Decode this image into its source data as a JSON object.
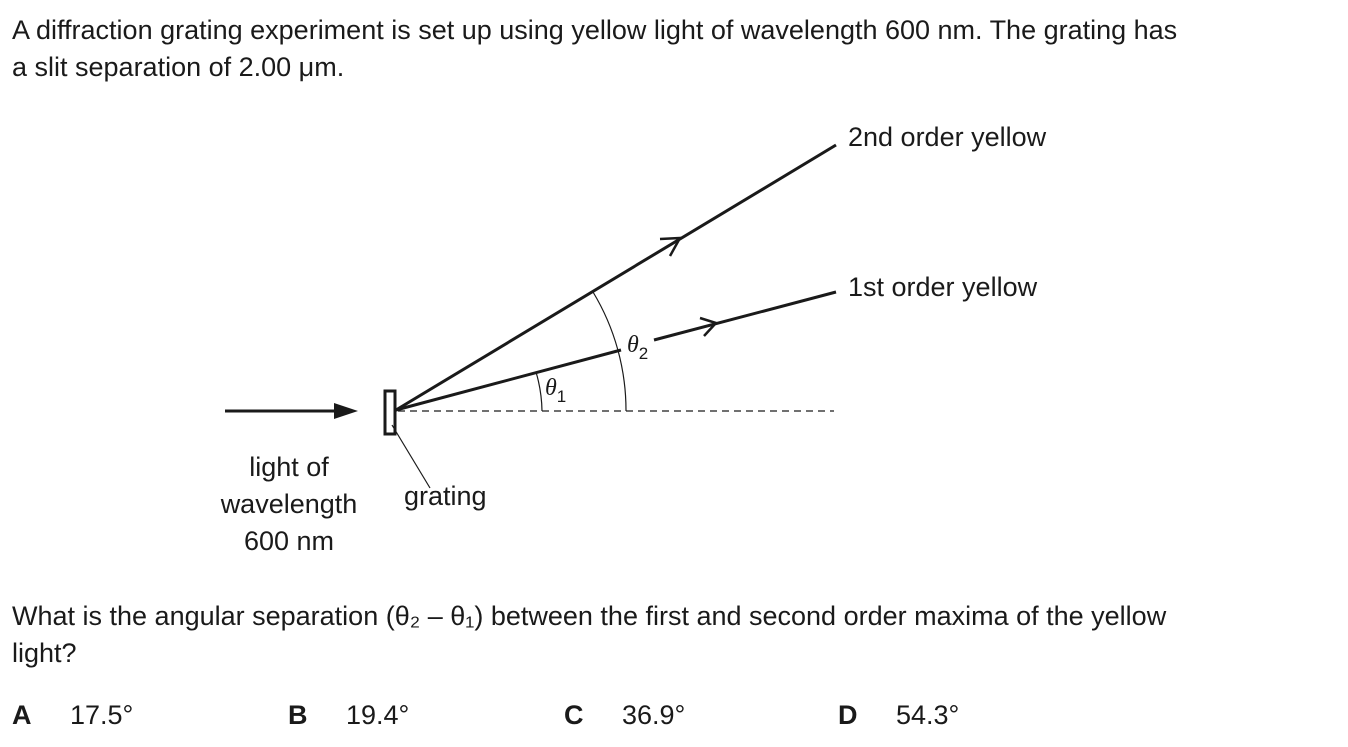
{
  "question": {
    "intro_line1": "A diffraction grating experiment is set up using yellow light of wavelength 600 nm. The grating has",
    "intro_line2": "a slit separation of 2.00 μm.",
    "prompt_line1": "What is the angular separation (θ₂ – θ₁) between the first and second order maxima of the yellow",
    "prompt_line2": "light?"
  },
  "diagram": {
    "label_second_order": "2nd order yellow",
    "label_first_order": "1st order yellow",
    "label_theta1_symbol": "θ",
    "label_theta1_sub": "1",
    "label_theta2_symbol": "θ",
    "label_theta2_sub": "2",
    "label_light_line1": "light of",
    "label_light_line2": "wavelength",
    "label_light_line3": "600 nm",
    "label_grating": "grating"
  },
  "options": [
    {
      "letter": "A",
      "value": "17.5°"
    },
    {
      "letter": "B",
      "value": "19.4°"
    },
    {
      "letter": "C",
      "value": "36.9°"
    },
    {
      "letter": "D",
      "value": "54.3°"
    }
  ]
}
